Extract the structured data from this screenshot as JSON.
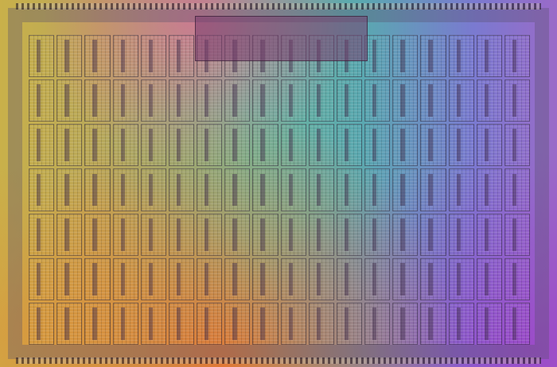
{
  "image": {
    "subject": "processor-die-photo",
    "colors": {
      "left": "#c9b04a",
      "center": "#6fb59a",
      "right": "#9a6ac8",
      "bottom": "#f06e28",
      "top": "#e66496"
    }
  }
}
